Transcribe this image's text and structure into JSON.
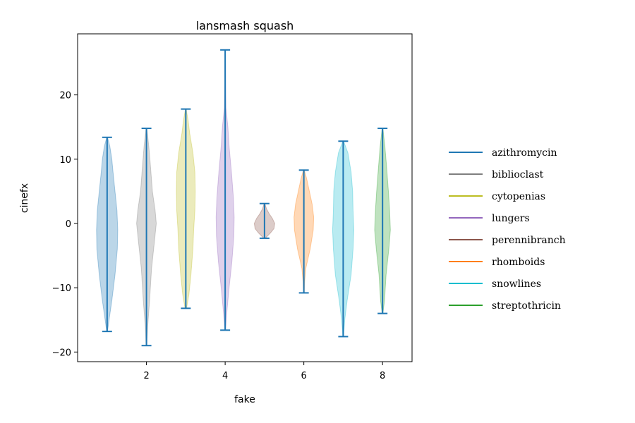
{
  "chart_data": {
    "type": "violin",
    "title": "lansmash squash",
    "xlabel": "fake",
    "ylabel": "cinefx",
    "xlim": [
      0.25,
      8.75
    ],
    "ylim": [
      -21.5,
      29.5
    ],
    "xticks": [
      2,
      4,
      6,
      8
    ],
    "yticks": [
      -20,
      -10,
      0,
      10,
      20
    ],
    "stat_color": "#1f77b4",
    "legend": {
      "placement": "right, outside plot",
      "entries": [
        {
          "label": "azithromycin",
          "color": "#1f77b4"
        },
        {
          "label": "biblioclast",
          "color": "#7f7f7f"
        },
        {
          "label": "cytopenias",
          "color": "#bcbd22"
        },
        {
          "label": "lungers",
          "color": "#9467bd"
        },
        {
          "label": "perennibranch",
          "color": "#8c564b"
        },
        {
          "label": "rhomboids",
          "color": "#ff7f0e"
        },
        {
          "label": "snowlines",
          "color": "#17becf"
        },
        {
          "label": "streptothricin",
          "color": "#2ca02c"
        }
      ]
    },
    "violins": [
      {
        "position": 1,
        "color": "#1f77b4",
        "min": -16.8,
        "max": 13.4,
        "profile": [
          [
            -16.8,
            0.01
          ],
          [
            -15,
            0.05
          ],
          [
            -12,
            0.12
          ],
          [
            -8,
            0.2
          ],
          [
            -4,
            0.26
          ],
          [
            -1,
            0.27
          ],
          [
            2,
            0.25
          ],
          [
            5,
            0.2
          ],
          [
            8,
            0.15
          ],
          [
            10,
            0.12
          ],
          [
            12,
            0.07
          ],
          [
            13.4,
            0.01
          ]
        ]
      },
      {
        "position": 2,
        "color": "#7f7f7f",
        "min": -19.0,
        "max": 14.8,
        "profile": [
          [
            -19,
            0.01
          ],
          [
            -16,
            0.03
          ],
          [
            -12,
            0.08
          ],
          [
            -7,
            0.13
          ],
          [
            -3,
            0.2
          ],
          [
            0,
            0.25
          ],
          [
            2,
            0.22
          ],
          [
            5,
            0.15
          ],
          [
            9,
            0.1
          ],
          [
            12,
            0.06
          ],
          [
            14.8,
            0.01
          ]
        ]
      },
      {
        "position": 3,
        "color": "#bcbd22",
        "min": -13.2,
        "max": 17.8,
        "profile": [
          [
            -13.2,
            0.02
          ],
          [
            -11,
            0.08
          ],
          [
            -8,
            0.13
          ],
          [
            -4,
            0.18
          ],
          [
            -1,
            0.2
          ],
          [
            2,
            0.23
          ],
          [
            5,
            0.24
          ],
          [
            8,
            0.23
          ],
          [
            11,
            0.18
          ],
          [
            14,
            0.1
          ],
          [
            16,
            0.06
          ],
          [
            17.8,
            0.01
          ]
        ]
      },
      {
        "position": 4,
        "color": "#9467bd",
        "min": -16.6,
        "max": 27.0,
        "profile": [
          [
            -16.6,
            0.01
          ],
          [
            -14,
            0.04
          ],
          [
            -10,
            0.1
          ],
          [
            -6,
            0.17
          ],
          [
            -2,
            0.22
          ],
          [
            1,
            0.23
          ],
          [
            4,
            0.21
          ],
          [
            8,
            0.16
          ],
          [
            12,
            0.1
          ],
          [
            15,
            0.07
          ],
          [
            18,
            0.02
          ],
          [
            22,
            0.01
          ],
          [
            27,
            0.005
          ]
        ]
      },
      {
        "position": 5,
        "color": "#8c564b",
        "min": -2.3,
        "max": 3.1,
        "profile": [
          [
            -2.3,
            0.02
          ],
          [
            -1.5,
            0.15
          ],
          [
            -0.8,
            0.24
          ],
          [
            0,
            0.26
          ],
          [
            0.8,
            0.2
          ],
          [
            1.5,
            0.12
          ],
          [
            2.3,
            0.05
          ],
          [
            3.1,
            0.01
          ]
        ]
      },
      {
        "position": 6,
        "color": "#ff7f0e",
        "min": -10.8,
        "max": 8.3,
        "profile": [
          [
            -10.8,
            0.01
          ],
          [
            -9,
            0.02
          ],
          [
            -7,
            0.05
          ],
          [
            -4,
            0.16
          ],
          [
            -1,
            0.24
          ],
          [
            1,
            0.25
          ],
          [
            3,
            0.21
          ],
          [
            5,
            0.14
          ],
          [
            7,
            0.07
          ],
          [
            8.3,
            0.01
          ]
        ]
      },
      {
        "position": 7,
        "color": "#17becf",
        "min": -17.6,
        "max": 12.8,
        "profile": [
          [
            -17.6,
            0.01
          ],
          [
            -15,
            0.04
          ],
          [
            -12,
            0.1
          ],
          [
            -8,
            0.2
          ],
          [
            -4,
            0.25
          ],
          [
            -1,
            0.27
          ],
          [
            2,
            0.25
          ],
          [
            5,
            0.24
          ],
          [
            8,
            0.2
          ],
          [
            11,
            0.12
          ],
          [
            12.8,
            0.01
          ]
        ]
      },
      {
        "position": 8,
        "color": "#2ca02c",
        "min": -14.0,
        "max": 14.8,
        "profile": [
          [
            -14,
            0.01
          ],
          [
            -12,
            0.05
          ],
          [
            -8,
            0.09
          ],
          [
            -4,
            0.16
          ],
          [
            -1,
            0.2
          ],
          [
            2,
            0.18
          ],
          [
            5,
            0.15
          ],
          [
            9,
            0.1
          ],
          [
            12,
            0.06
          ],
          [
            14.8,
            0.01
          ]
        ]
      }
    ]
  }
}
